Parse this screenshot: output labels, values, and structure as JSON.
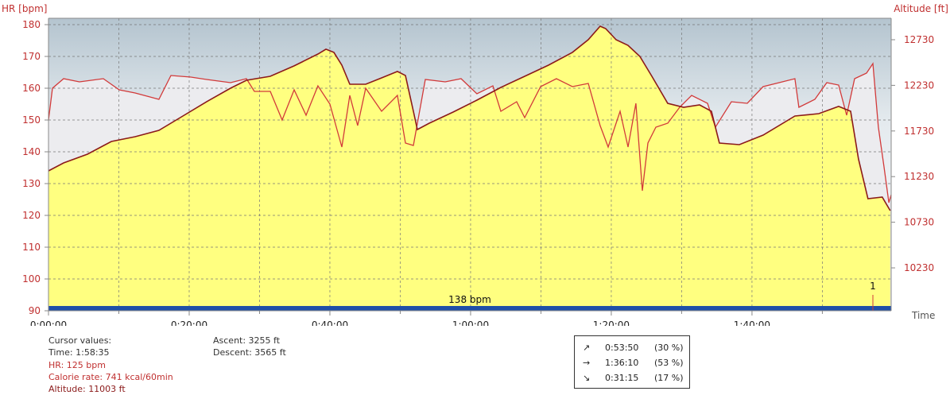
{
  "chart_data": {
    "type": "line",
    "y_label": "HR [bpm]",
    "y2_label": "Altitude [ft]",
    "x_label": "Time",
    "xlim": [
      0,
      7187
    ],
    "ylim": [
      90,
      182
    ],
    "y2lim": [
      9760,
      12965
    ],
    "yticks": [
      90,
      100,
      110,
      120,
      130,
      140,
      150,
      160,
      170,
      180
    ],
    "y2ticks": [
      10230,
      10730,
      11230,
      11730,
      12230,
      12730
    ],
    "xticks": [
      {
        "value": 0,
        "label": "0:00:00"
      },
      {
        "value": 600,
        "label": null
      },
      {
        "value": 1200,
        "label": "0:20:00"
      },
      {
        "value": 1800,
        "label": null
      },
      {
        "value": 2400,
        "label": "0:40:00"
      },
      {
        "value": 3000,
        "label": null
      },
      {
        "value": 3600,
        "label": "1:00:00"
      },
      {
        "value": 4200,
        "label": null
      },
      {
        "value": 4800,
        "label": "1:20:00"
      },
      {
        "value": 5400,
        "label": null
      },
      {
        "value": 6000,
        "label": "1:40:00"
      },
      {
        "value": 6600,
        "label": null
      }
    ],
    "grid": true,
    "series": [
      {
        "name": "Altitude",
        "axis": "y2",
        "color": "#8b1a1a",
        "fill": "#ffff80",
        "x": [
          0,
          129,
          332,
          536,
          739,
          942,
          1146,
          1349,
          1552,
          1688,
          1891,
          2095,
          2298,
          2366,
          2434,
          2502,
          2570,
          2705,
          2841,
          2976,
          3044,
          3112,
          3146,
          3248,
          3451,
          3654,
          3858,
          4061,
          4264,
          4468,
          4603,
          4705,
          4752,
          4841,
          4942,
          5044,
          5146,
          5281,
          5417,
          5553,
          5654,
          5722,
          5892,
          6095,
          6366,
          6569,
          6739,
          6841,
          6908,
          6989,
          7111,
          7179
        ],
        "values": [
          11293,
          11380,
          11476,
          11615,
          11667,
          11737,
          11894,
          12051,
          12199,
          12286,
          12329,
          12443,
          12573,
          12626,
          12591,
          12451,
          12242,
          12242,
          12312,
          12382,
          12338,
          11946,
          11746,
          11815,
          11937,
          12068,
          12207,
          12329,
          12451,
          12591,
          12730,
          12878,
          12852,
          12730,
          12669,
          12547,
          12329,
          12033,
          11990,
          12016,
          11946,
          11598,
          11580,
          11685,
          11894,
          11920,
          11999,
          11946,
          11423,
          10988,
          11005,
          10857
        ]
      },
      {
        "name": "HR",
        "axis": "y",
        "color": "#d23a3a",
        "fill": "#ececef",
        "x": [
          0,
          34,
          129,
          264,
          468,
          603,
          739,
          942,
          1044,
          1214,
          1349,
          1553,
          1688,
          1756,
          1892,
          1993,
          2095,
          2197,
          2298,
          2400,
          2502,
          2570,
          2637,
          2705,
          2841,
          2976,
          3044,
          3112,
          3214,
          3383,
          3519,
          3654,
          3790,
          3858,
          3993,
          4061,
          4197,
          4332,
          4468,
          4604,
          4705,
          4773,
          4875,
          4943,
          5010,
          5065,
          5112,
          5180,
          5282,
          5383,
          5485,
          5621,
          5688,
          5824,
          5960,
          6095,
          6231,
          6366,
          6400,
          6536,
          6638,
          6739,
          6807,
          6875,
          6977,
          7031,
          7078,
          7126,
          7167,
          7187
        ],
        "values": [
          150,
          160,
          163,
          162,
          163,
          159.5,
          158.5,
          156.5,
          164,
          163.5,
          162.75,
          161.75,
          163,
          159,
          159,
          150,
          159.5,
          151.5,
          160.75,
          155,
          141.5,
          157.75,
          148.25,
          160,
          152.75,
          157.75,
          142.75,
          142,
          162.75,
          162,
          163,
          158.25,
          160.75,
          152.75,
          155.75,
          150.75,
          160.5,
          163,
          160.5,
          161.5,
          148.25,
          141.5,
          152.75,
          141.5,
          155.25,
          127.75,
          142.75,
          147.75,
          149,
          154,
          157.75,
          155.25,
          147.75,
          155.75,
          155.25,
          160.5,
          161.75,
          163,
          154,
          156.5,
          161.75,
          161,
          151.5,
          163,
          164.75,
          167.75,
          147.75,
          135.25,
          124,
          126.5
        ]
      }
    ],
    "zone_label": "138 bpm",
    "laps": [
      {
        "x": 7031,
        "label": "1"
      }
    ]
  },
  "info": {
    "cursor": [
      "Cursor values:",
      "Time: 1:58:35",
      "HR: 125 bpm",
      "Calorie rate: 741 kcal/60min",
      "Altitude: 11003 ft"
    ],
    "ascent": [
      "Ascent: 3255 ft",
      "Descent: 3565 ft"
    ],
    "summary": [
      [
        "↗",
        "0:53:50",
        "(30 %)"
      ],
      [
        "→",
        "1:36:10",
        "(53 %)"
      ],
      [
        "↘",
        "0:31:15",
        "(17 %)"
      ]
    ]
  }
}
